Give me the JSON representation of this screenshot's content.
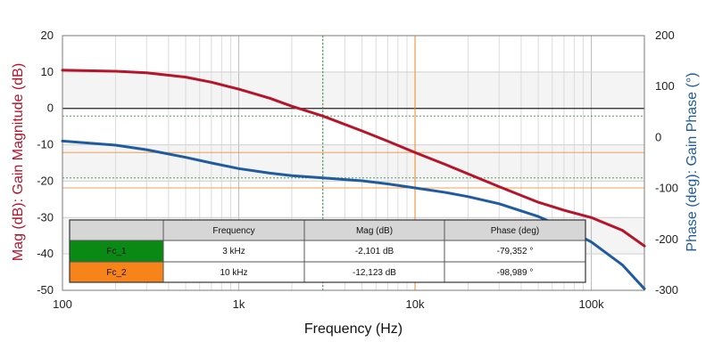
{
  "chart_data": {
    "type": "line",
    "x_scale": "log",
    "xlabel": "Frequency (Hz)",
    "ylabel_left": "Mag (dB): Gain Magnitude (dB)",
    "ylabel_right": "Phase (deg): Gain Phase (°)",
    "xlim": [
      100,
      200000
    ],
    "ylim_left": [
      -50,
      20
    ],
    "ylim_right": [
      -300,
      200
    ],
    "x_ticks": [
      100,
      1000,
      10000,
      100000
    ],
    "x_tick_labels": [
      "100",
      "1k",
      "10k",
      "100k"
    ],
    "y_left_ticks": [
      20,
      10,
      0,
      -10,
      -20,
      -30,
      -40,
      -50
    ],
    "y_left_tick_labels": [
      "20",
      "10",
      "0",
      "-10",
      "-20",
      "-30",
      "-40",
      "-50"
    ],
    "y_right_ticks": [
      200,
      100,
      0,
      -100,
      -200,
      -300
    ],
    "y_right_tick_labels": [
      "200",
      "100",
      "0",
      "-100",
      "-200",
      "-300"
    ],
    "grid": true,
    "colors": {
      "magnitude": "#b5152b",
      "phase": "#1f5b9e",
      "left_axis_title": "#b5152b",
      "right_axis_title": "#1f5b9e",
      "cursor_1": "#2e8b3a",
      "cursor_2": "#f08a2a"
    },
    "series": [
      {
        "axis": "left",
        "x": [
          100,
          200,
          300,
          500,
          700,
          1000,
          1500,
          2000,
          3000,
          5000,
          7000,
          10000,
          15000,
          20000,
          30000,
          50000,
          70000,
          100000,
          150000,
          200000
        ],
        "values": [
          10.5,
          10.2,
          9.8,
          8.6,
          7.2,
          5.3,
          2.8,
          0.6,
          -2.1,
          -6.2,
          -9.0,
          -12.1,
          -15.5,
          -18.0,
          -21.5,
          -25.8,
          -28.0,
          -30.0,
          -33.5,
          -37.8
        ]
      },
      {
        "axis": "right",
        "x": [
          100,
          200,
          300,
          500,
          700,
          1000,
          1500,
          2000,
          3000,
          5000,
          7000,
          10000,
          15000,
          20000,
          30000,
          50000,
          70000,
          100000,
          150000,
          200000
        ],
        "values": [
          -7,
          -15,
          -24,
          -39,
          -50,
          -61,
          -70,
          -75,
          -79.4,
          -85,
          -91,
          -99,
          -108,
          -116,
          -130,
          -155,
          -177,
          -205,
          -250,
          -297
        ]
      }
    ],
    "cursors": [
      {
        "name": "Fc_1",
        "x": 3000,
        "mag": -2.101,
        "phase": -79.352
      },
      {
        "name": "Fc_2",
        "x": 10000,
        "mag": -12.123,
        "phase": -98.989
      }
    ]
  },
  "table": {
    "headers": [
      "",
      "Frequency",
      "Mag (dB)",
      "Phase (deg)"
    ],
    "rows": [
      {
        "label": "Fc_1",
        "color": "#0a8a14",
        "frequency": "3 kHz",
        "mag": "-2,101 dB",
        "phase": "-79,352 °"
      },
      {
        "label": "Fc_2",
        "color": "#f7841a",
        "frequency": "10 kHz",
        "mag": "-12,123 dB",
        "phase": "-98,989 °"
      }
    ]
  }
}
